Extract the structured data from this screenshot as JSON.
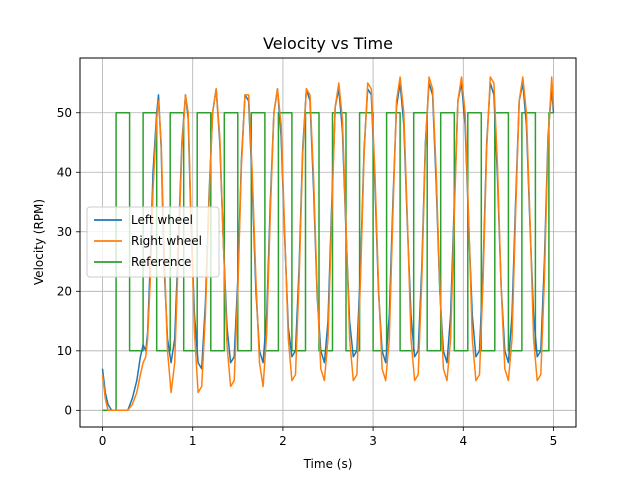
{
  "chart_data": {
    "type": "line",
    "title": "Velocity vs Time",
    "xlabel": "Time (s)",
    "ylabel": "Velocity (RPM)",
    "xlim": [
      -0.25,
      5.25
    ],
    "ylim": [
      -2.8,
      59.2
    ],
    "xticks": [
      0,
      1,
      2,
      3,
      4,
      5
    ],
    "yticks": [
      0,
      10,
      20,
      30,
      40,
      50
    ],
    "grid": true,
    "legend_position": "center-left",
    "series": [
      {
        "name": "Left wheel",
        "color": "#1f77b4",
        "x": [
          0,
          0.03,
          0.06,
          0.1,
          0.15,
          0.2,
          0.28,
          0.33,
          0.38,
          0.42,
          0.45,
          0.48,
          0.5,
          0.53,
          0.56,
          0.6,
          0.62,
          0.65,
          0.68,
          0.72,
          0.76,
          0.8,
          0.84,
          0.88,
          0.92,
          0.95,
          0.98,
          1.02,
          1.06,
          1.1,
          1.14,
          1.18,
          1.22,
          1.26,
          1.3,
          1.34,
          1.38,
          1.42,
          1.46,
          1.5,
          1.54,
          1.58,
          1.62,
          1.66,
          1.7,
          1.74,
          1.78,
          1.82,
          1.86,
          1.9,
          1.94,
          1.98,
          2.02,
          2.06,
          2.1,
          2.14,
          2.18,
          2.22,
          2.26,
          2.3,
          2.34,
          2.38,
          2.42,
          2.46,
          2.5,
          2.54,
          2.58,
          2.62,
          2.66,
          2.7,
          2.74,
          2.78,
          2.82,
          2.86,
          2.9,
          2.94,
          2.98,
          3.02,
          3.06,
          3.1,
          3.14,
          3.18,
          3.22,
          3.26,
          3.3,
          3.34,
          3.38,
          3.42,
          3.46,
          3.5,
          3.54,
          3.58,
          3.62,
          3.66,
          3.7,
          3.74,
          3.78,
          3.82,
          3.86,
          3.9,
          3.94,
          3.98,
          4.02,
          4.06,
          4.1,
          4.14,
          4.18,
          4.22,
          4.26,
          4.3,
          4.34,
          4.38,
          4.42,
          4.46,
          4.5,
          4.54,
          4.58,
          4.62,
          4.66,
          4.7,
          4.74,
          4.78,
          4.82,
          4.86,
          4.9,
          4.94,
          4.98,
          5.0
        ],
        "y": [
          7,
          3,
          1,
          0,
          0,
          0,
          0,
          2,
          5,
          9,
          11,
          10,
          13,
          25,
          40,
          50,
          53,
          44,
          25,
          12,
          8,
          12,
          28,
          45,
          53,
          49,
          32,
          16,
          8,
          7,
          18,
          36,
          50,
          54,
          45,
          28,
          14,
          8,
          9,
          22,
          42,
          53,
          52,
          38,
          20,
          10,
          8,
          16,
          35,
          50,
          54,
          46,
          29,
          14,
          9,
          10,
          24,
          44,
          54,
          52,
          37,
          19,
          10,
          8,
          15,
          34,
          51,
          54,
          47,
          30,
          15,
          9,
          10,
          24,
          44,
          54,
          53,
          38,
          20,
          10,
          8,
          16,
          35,
          51,
          55,
          48,
          31,
          16,
          9,
          10,
          24,
          45,
          55,
          53,
          38,
          20,
          10,
          8,
          16,
          35,
          52,
          55,
          48,
          31,
          16,
          9,
          10,
          24,
          45,
          55,
          53,
          39,
          21,
          10,
          8,
          16,
          35,
          52,
          55,
          48,
          31,
          16,
          9,
          10,
          25,
          46,
          54,
          50
        ]
      },
      {
        "name": "Right wheel",
        "color": "#ff7f0e",
        "x": [
          0,
          0.03,
          0.06,
          0.1,
          0.15,
          0.2,
          0.28,
          0.33,
          0.38,
          0.42,
          0.45,
          0.48,
          0.5,
          0.53,
          0.56,
          0.6,
          0.62,
          0.65,
          0.68,
          0.72,
          0.76,
          0.8,
          0.84,
          0.88,
          0.92,
          0.95,
          0.98,
          1.02,
          1.06,
          1.1,
          1.14,
          1.18,
          1.22,
          1.26,
          1.3,
          1.34,
          1.38,
          1.42,
          1.46,
          1.5,
          1.54,
          1.58,
          1.62,
          1.66,
          1.7,
          1.74,
          1.78,
          1.82,
          1.86,
          1.9,
          1.94,
          1.98,
          2.02,
          2.06,
          2.1,
          2.14,
          2.18,
          2.22,
          2.26,
          2.3,
          2.34,
          2.38,
          2.42,
          2.46,
          2.5,
          2.54,
          2.58,
          2.62,
          2.66,
          2.7,
          2.74,
          2.78,
          2.82,
          2.86,
          2.9,
          2.94,
          2.98,
          3.02,
          3.06,
          3.1,
          3.14,
          3.18,
          3.22,
          3.26,
          3.3,
          3.34,
          3.38,
          3.42,
          3.46,
          3.5,
          3.54,
          3.58,
          3.62,
          3.66,
          3.7,
          3.74,
          3.78,
          3.82,
          3.86,
          3.9,
          3.94,
          3.98,
          4.02,
          4.06,
          4.1,
          4.14,
          4.18,
          4.22,
          4.26,
          4.3,
          4.34,
          4.38,
          4.42,
          4.46,
          4.5,
          4.54,
          4.58,
          4.62,
          4.66,
          4.7,
          4.74,
          4.78,
          4.82,
          4.86,
          4.9,
          4.94,
          4.98,
          5.0
        ],
        "y": [
          6,
          2,
          0,
          0,
          0,
          0,
          0,
          1,
          3,
          6,
          8,
          9,
          12,
          22,
          37,
          49,
          52,
          45,
          28,
          10,
          3,
          8,
          26,
          44,
          53,
          50,
          33,
          13,
          3,
          4,
          16,
          35,
          50,
          54,
          46,
          28,
          11,
          4,
          5,
          20,
          41,
          53,
          53,
          40,
          22,
          8,
          4,
          13,
          33,
          50,
          54,
          48,
          30,
          12,
          5,
          6,
          22,
          43,
          54,
          53,
          39,
          20,
          7,
          5,
          12,
          32,
          51,
          55,
          49,
          31,
          12,
          5,
          6,
          22,
          43,
          55,
          54,
          40,
          21,
          7,
          5,
          12,
          33,
          52,
          56,
          50,
          32,
          12,
          5,
          6,
          22,
          44,
          56,
          54,
          40,
          21,
          7,
          5,
          12,
          33,
          52,
          56,
          50,
          32,
          12,
          5,
          6,
          22,
          44,
          56,
          55,
          41,
          21,
          7,
          5,
          12,
          33,
          52,
          56,
          50,
          32,
          12,
          5,
          6,
          22,
          45,
          56,
          51
        ]
      },
      {
        "name": "Reference",
        "color": "#2ca02c",
        "step": true,
        "x": [
          0,
          0.15,
          0.15,
          0.3,
          0.3,
          0.45,
          0.45,
          0.6,
          0.6,
          0.75,
          0.75,
          0.9,
          0.9,
          1.05,
          1.05,
          1.2,
          1.2,
          1.35,
          1.35,
          1.5,
          1.5,
          1.65,
          1.65,
          1.8,
          1.8,
          1.95,
          1.95,
          2.1,
          2.1,
          2.25,
          2.25,
          2.4,
          2.4,
          2.55,
          2.55,
          2.7,
          2.7,
          2.85,
          2.85,
          3.0,
          3.0,
          3.15,
          3.15,
          3.3,
          3.3,
          3.45,
          3.45,
          3.6,
          3.6,
          3.75,
          3.75,
          3.9,
          3.9,
          4.05,
          4.05,
          4.2,
          4.2,
          4.35,
          4.35,
          4.5,
          4.5,
          4.65,
          4.65,
          4.8,
          4.8,
          4.95,
          4.95,
          5.0
        ],
        "y": [
          0,
          0,
          50,
          50,
          10,
          10,
          50,
          50,
          10,
          10,
          50,
          50,
          10,
          10,
          50,
          50,
          10,
          10,
          50,
          50,
          10,
          10,
          50,
          50,
          10,
          10,
          50,
          50,
          10,
          10,
          50,
          50,
          10,
          10,
          50,
          50,
          10,
          10,
          50,
          50,
          10,
          10,
          50,
          50,
          10,
          10,
          50,
          50,
          10,
          10,
          50,
          50,
          10,
          10,
          50,
          50,
          10,
          10,
          50,
          50,
          10,
          10,
          50,
          50,
          10,
          10,
          50,
          50
        ]
      }
    ]
  }
}
